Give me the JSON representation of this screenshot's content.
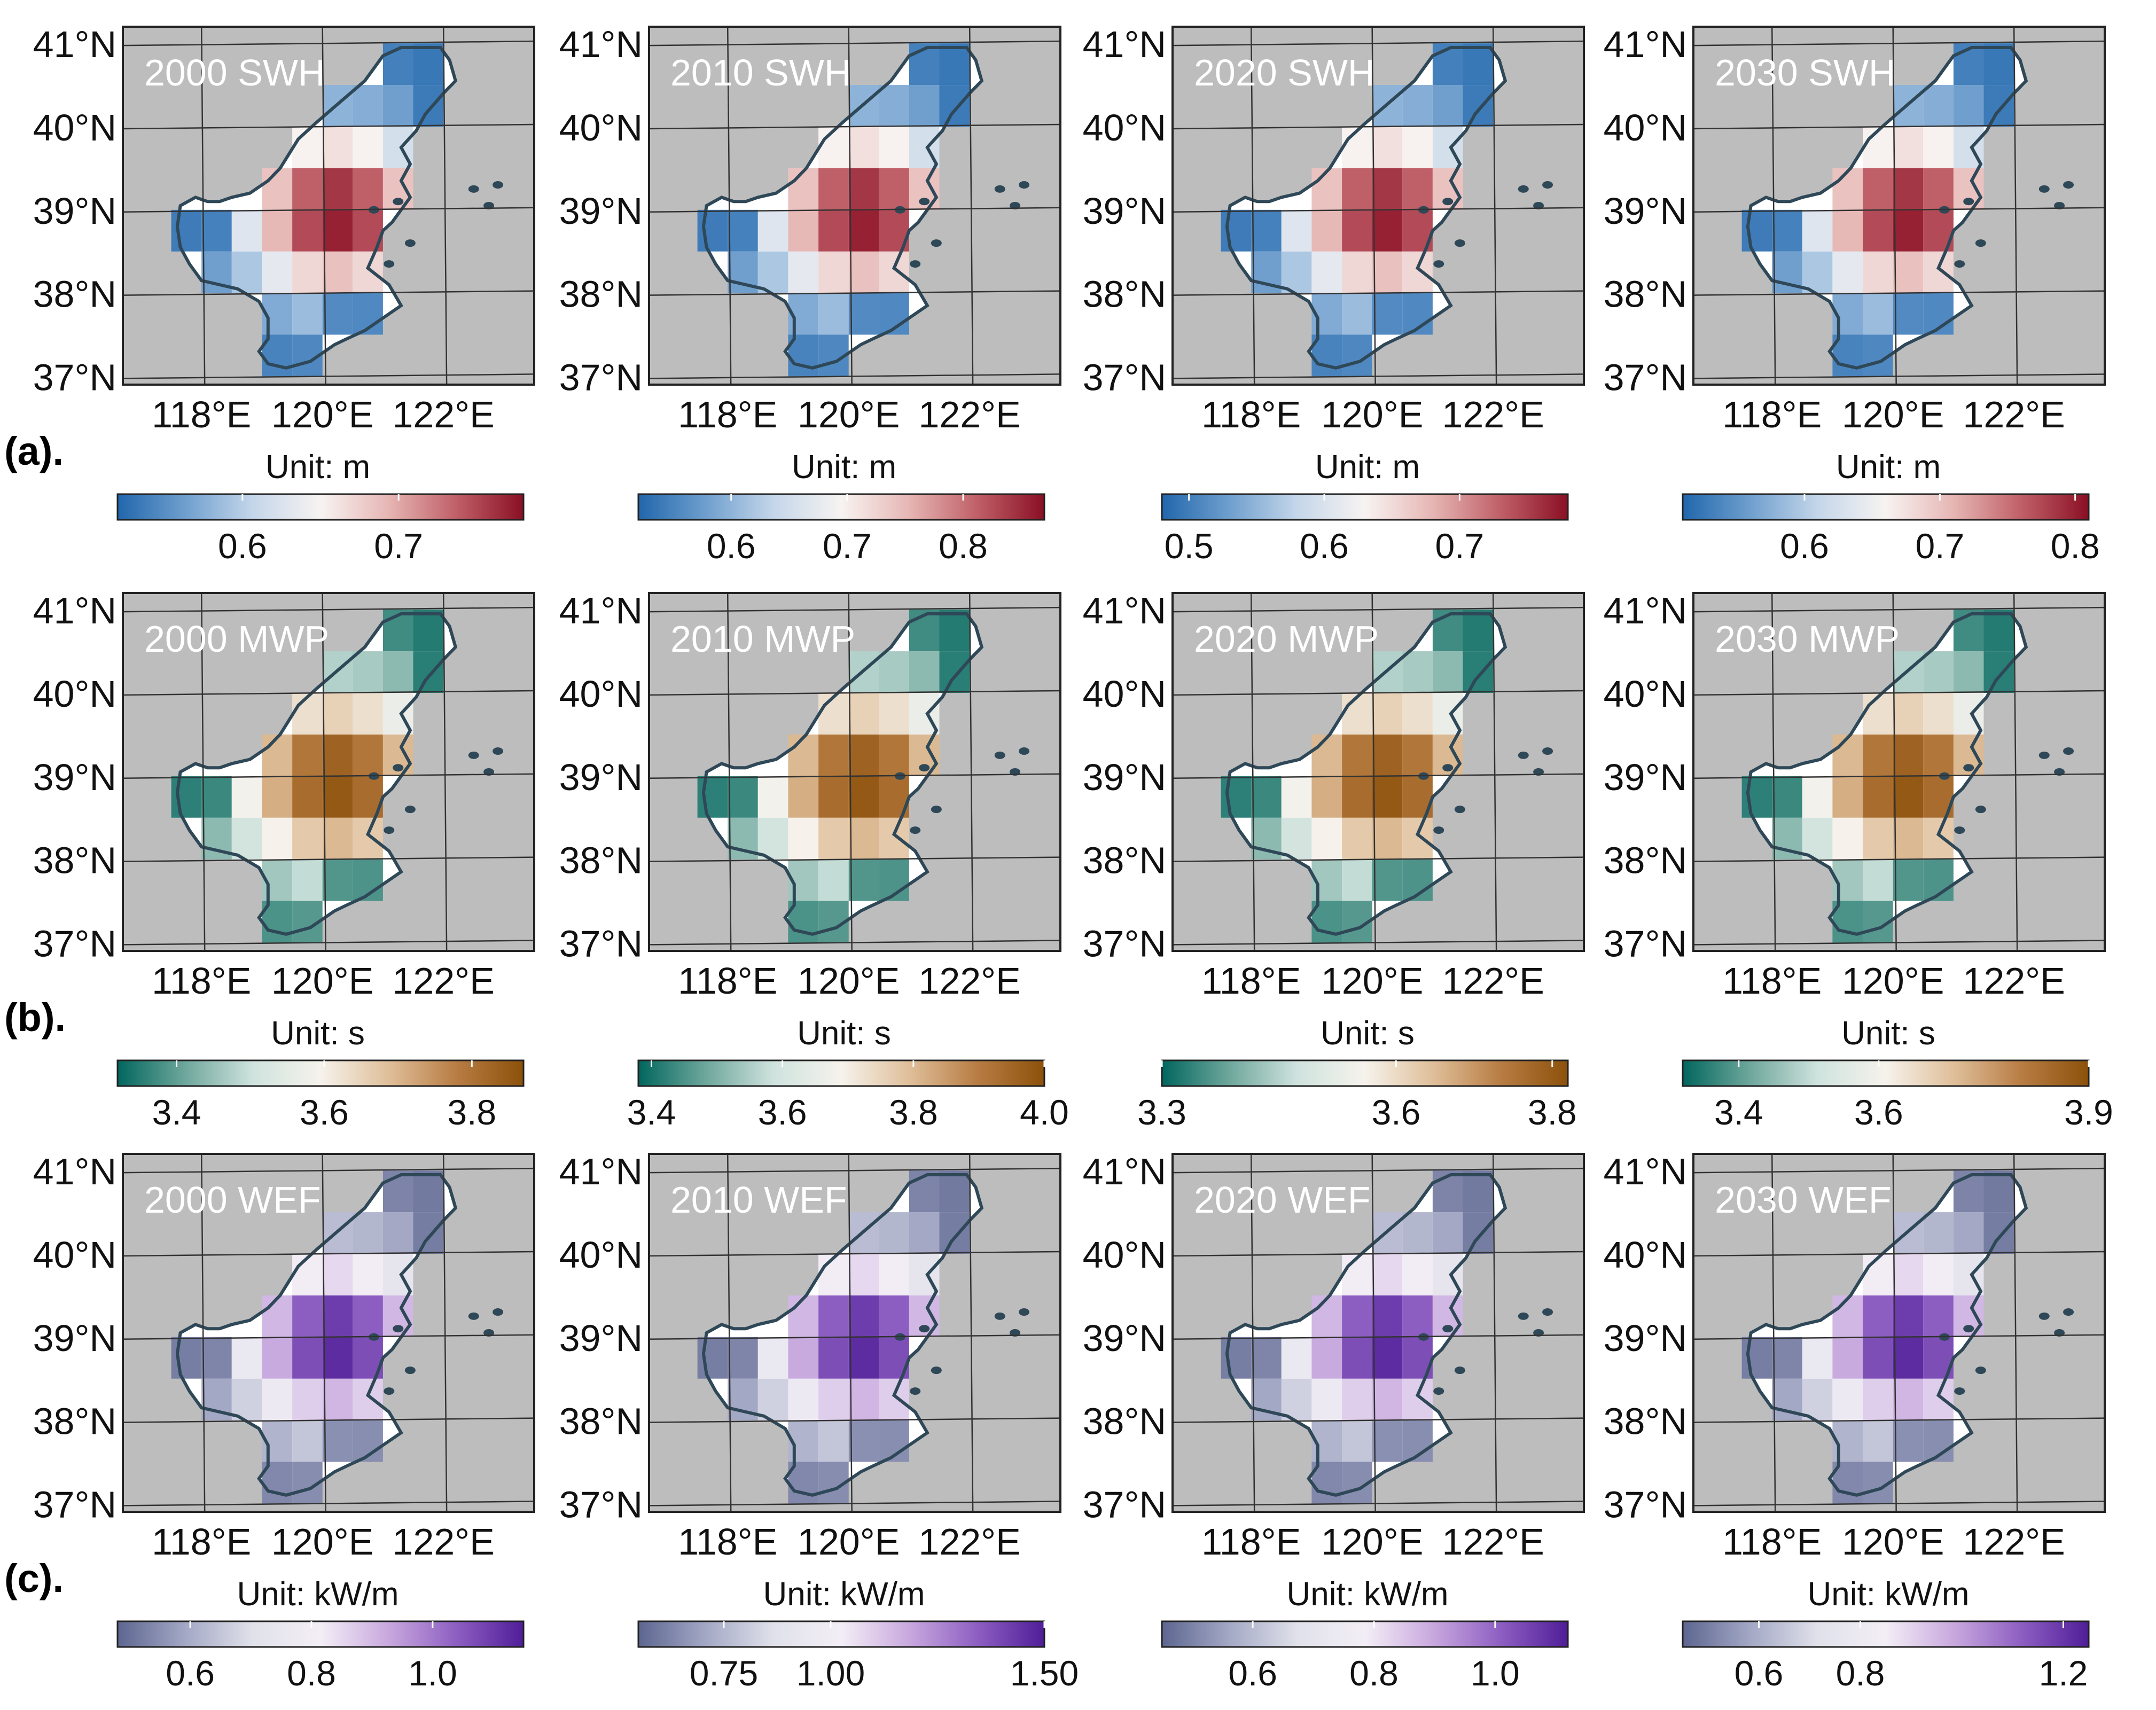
{
  "figure": {
    "row_labels": [
      "(a).",
      "(b).",
      "(c)."
    ],
    "lat_tick_labels": [
      "41°N",
      "40°N",
      "39°N",
      "38°N",
      "37°N"
    ],
    "lon_tick_labels": [
      "118°E",
      "120°E",
      "122°E"
    ]
  },
  "colors": {
    "land": "#bdbdbd",
    "coast": "#2f4858",
    "sea": "#ffffff",
    "grid": "#333333"
  },
  "chart_data": [
    {
      "type": "heatmap",
      "row": 0,
      "col": 0,
      "title": "2000 SWH",
      "unit_label": "Unit: m",
      "cmap": "rdbu",
      "cbar_range": [
        0.52,
        0.78
      ],
      "cbar_ticks": [
        {
          "v": 0.6,
          "label": "0.6"
        },
        {
          "v": 0.7,
          "label": "0.7"
        }
      ],
      "lon_range": [
        116.7,
        123.5
      ],
      "lat_range": [
        36.9,
        41.2
      ],
      "grid_lon": [
        118,
        120,
        122
      ],
      "grid_lat": [
        37,
        38,
        39,
        40,
        41
      ]
    },
    {
      "type": "heatmap",
      "row": 0,
      "col": 1,
      "title": "2010 SWH",
      "unit_label": "Unit: m",
      "cmap": "rdbu",
      "cbar_range": [
        0.52,
        0.87
      ],
      "cbar_ticks": [
        {
          "v": 0.6,
          "label": "0.6"
        },
        {
          "v": 0.7,
          "label": "0.7"
        },
        {
          "v": 0.8,
          "label": "0.8"
        }
      ],
      "lon_range": [
        116.7,
        123.5
      ],
      "lat_range": [
        36.9,
        41.2
      ],
      "grid_lon": [
        118,
        120,
        122
      ],
      "grid_lat": [
        37,
        38,
        39,
        40,
        41
      ]
    },
    {
      "type": "heatmap",
      "row": 0,
      "col": 2,
      "title": "2020 SWH",
      "unit_label": "Unit: m",
      "cmap": "rdbu",
      "cbar_range": [
        0.48,
        0.78
      ],
      "cbar_ticks": [
        {
          "v": 0.5,
          "label": "0.5"
        },
        {
          "v": 0.6,
          "label": "0.6"
        },
        {
          "v": 0.7,
          "label": "0.7"
        }
      ],
      "lon_range": [
        116.7,
        123.5
      ],
      "lat_range": [
        36.9,
        41.2
      ],
      "grid_lon": [
        118,
        120,
        122
      ],
      "grid_lat": [
        37,
        38,
        39,
        40,
        41
      ]
    },
    {
      "type": "heatmap",
      "row": 0,
      "col": 3,
      "title": "2030 SWH",
      "unit_label": "Unit: m",
      "cmap": "rdbu",
      "cbar_range": [
        0.51,
        0.81
      ],
      "cbar_ticks": [
        {
          "v": 0.6,
          "label": "0.6"
        },
        {
          "v": 0.7,
          "label": "0.7"
        },
        {
          "v": 0.8,
          "label": "0.8"
        }
      ],
      "lon_range": [
        116.7,
        123.5
      ],
      "lat_range": [
        36.9,
        41.2
      ],
      "grid_lon": [
        118,
        120,
        122
      ],
      "grid_lat": [
        37,
        38,
        39,
        40,
        41
      ]
    },
    {
      "type": "heatmap",
      "row": 1,
      "col": 0,
      "title": "2000 MWP",
      "unit_label": "Unit: s",
      "cmap": "brbg",
      "cbar_range": [
        3.32,
        3.87
      ],
      "cbar_ticks": [
        {
          "v": 3.4,
          "label": "3.4"
        },
        {
          "v": 3.6,
          "label": "3.6"
        },
        {
          "v": 3.8,
          "label": "3.8"
        }
      ],
      "lon_range": [
        116.7,
        123.5
      ],
      "lat_range": [
        36.9,
        41.2
      ],
      "grid_lon": [
        118,
        120,
        122
      ],
      "grid_lat": [
        37,
        38,
        39,
        40,
        41
      ]
    },
    {
      "type": "heatmap",
      "row": 1,
      "col": 1,
      "title": "2010 MWP",
      "unit_label": "Unit: s",
      "cmap": "brbg",
      "cbar_range": [
        3.38,
        4.0
      ],
      "cbar_ticks": [
        {
          "v": 3.4,
          "label": "3.4"
        },
        {
          "v": 3.6,
          "label": "3.6"
        },
        {
          "v": 3.8,
          "label": "3.8"
        },
        {
          "v": 4.0,
          "label": "4.0"
        }
      ],
      "lon_range": [
        116.7,
        123.5
      ],
      "lat_range": [
        36.9,
        41.2
      ],
      "grid_lon": [
        118,
        120,
        122
      ],
      "grid_lat": [
        37,
        38,
        39,
        40,
        41
      ]
    },
    {
      "type": "heatmap",
      "row": 1,
      "col": 2,
      "title": "2020 MWP",
      "unit_label": "Unit: s",
      "cmap": "brbg",
      "cbar_range": [
        3.3,
        3.82
      ],
      "cbar_ticks": [
        {
          "v": 3.3,
          "label": "3.3"
        },
        {
          "v": 3.6,
          "label": "3.6"
        },
        {
          "v": 3.8,
          "label": "3.8"
        }
      ],
      "lon_range": [
        116.7,
        123.5
      ],
      "lat_range": [
        36.9,
        41.2
      ],
      "grid_lon": [
        118,
        120,
        122
      ],
      "grid_lat": [
        37,
        38,
        39,
        40,
        41
      ]
    },
    {
      "type": "heatmap",
      "row": 1,
      "col": 3,
      "title": "2030 MWP",
      "unit_label": "Unit: s",
      "cmap": "brbg",
      "cbar_range": [
        3.32,
        3.9
      ],
      "cbar_ticks": [
        {
          "v": 3.4,
          "label": "3.4"
        },
        {
          "v": 3.6,
          "label": "3.6"
        },
        {
          "v": 3.9,
          "label": "3.9"
        }
      ],
      "lon_range": [
        116.7,
        123.5
      ],
      "lat_range": [
        36.9,
        41.2
      ],
      "grid_lon": [
        118,
        120,
        122
      ],
      "grid_lat": [
        37,
        38,
        39,
        40,
        41
      ]
    },
    {
      "type": "heatmap",
      "row": 2,
      "col": 0,
      "title": "2000 WEF",
      "unit_label": "Unit: kW/m",
      "cmap": "purples",
      "cbar_range": [
        0.48,
        1.15
      ],
      "cbar_ticks": [
        {
          "v": 0.6,
          "label": "0.6"
        },
        {
          "v": 0.8,
          "label": "0.8"
        },
        {
          "v": 1.0,
          "label": "1.0"
        }
      ],
      "lon_range": [
        116.7,
        123.5
      ],
      "lat_range": [
        36.9,
        41.2
      ],
      "grid_lon": [
        118,
        120,
        122
      ],
      "grid_lat": [
        37,
        38,
        39,
        40,
        41
      ]
    },
    {
      "type": "heatmap",
      "row": 2,
      "col": 1,
      "title": "2010 WEF",
      "unit_label": "Unit: kW/m",
      "cmap": "purples",
      "cbar_range": [
        0.55,
        1.5
      ],
      "cbar_ticks": [
        {
          "v": 0.75,
          "label": "0.75"
        },
        {
          "v": 1.0,
          "label": "1.00"
        },
        {
          "v": 1.5,
          "label": "1.50"
        }
      ],
      "lon_range": [
        116.7,
        123.5
      ],
      "lat_range": [
        36.9,
        41.2
      ],
      "grid_lon": [
        118,
        120,
        122
      ],
      "grid_lat": [
        37,
        38,
        39,
        40,
        41
      ]
    },
    {
      "type": "heatmap",
      "row": 2,
      "col": 2,
      "title": "2020 WEF",
      "unit_label": "Unit: kW/m",
      "cmap": "purples",
      "cbar_range": [
        0.45,
        1.12
      ],
      "cbar_ticks": [
        {
          "v": 0.6,
          "label": "0.6"
        },
        {
          "v": 0.8,
          "label": "0.8"
        },
        {
          "v": 1.0,
          "label": "1.0"
        }
      ],
      "lon_range": [
        116.7,
        123.5
      ],
      "lat_range": [
        36.9,
        41.2
      ],
      "grid_lon": [
        118,
        120,
        122
      ],
      "grid_lat": [
        37,
        38,
        39,
        40,
        41
      ]
    },
    {
      "type": "heatmap",
      "row": 2,
      "col": 3,
      "title": "2030 WEF",
      "unit_label": "Unit: kW/m",
      "cmap": "purples",
      "cbar_range": [
        0.45,
        1.25
      ],
      "cbar_ticks": [
        {
          "v": 0.6,
          "label": "0.6"
        },
        {
          "v": 0.8,
          "label": "0.8"
        },
        {
          "v": 1.2,
          "label": "1.2"
        }
      ],
      "lon_range": [
        116.7,
        123.5
      ],
      "lat_range": [
        36.9,
        41.2
      ],
      "grid_lon": [
        118,
        120,
        122
      ],
      "grid_lat": [
        37,
        38,
        39,
        40,
        41
      ]
    }
  ]
}
